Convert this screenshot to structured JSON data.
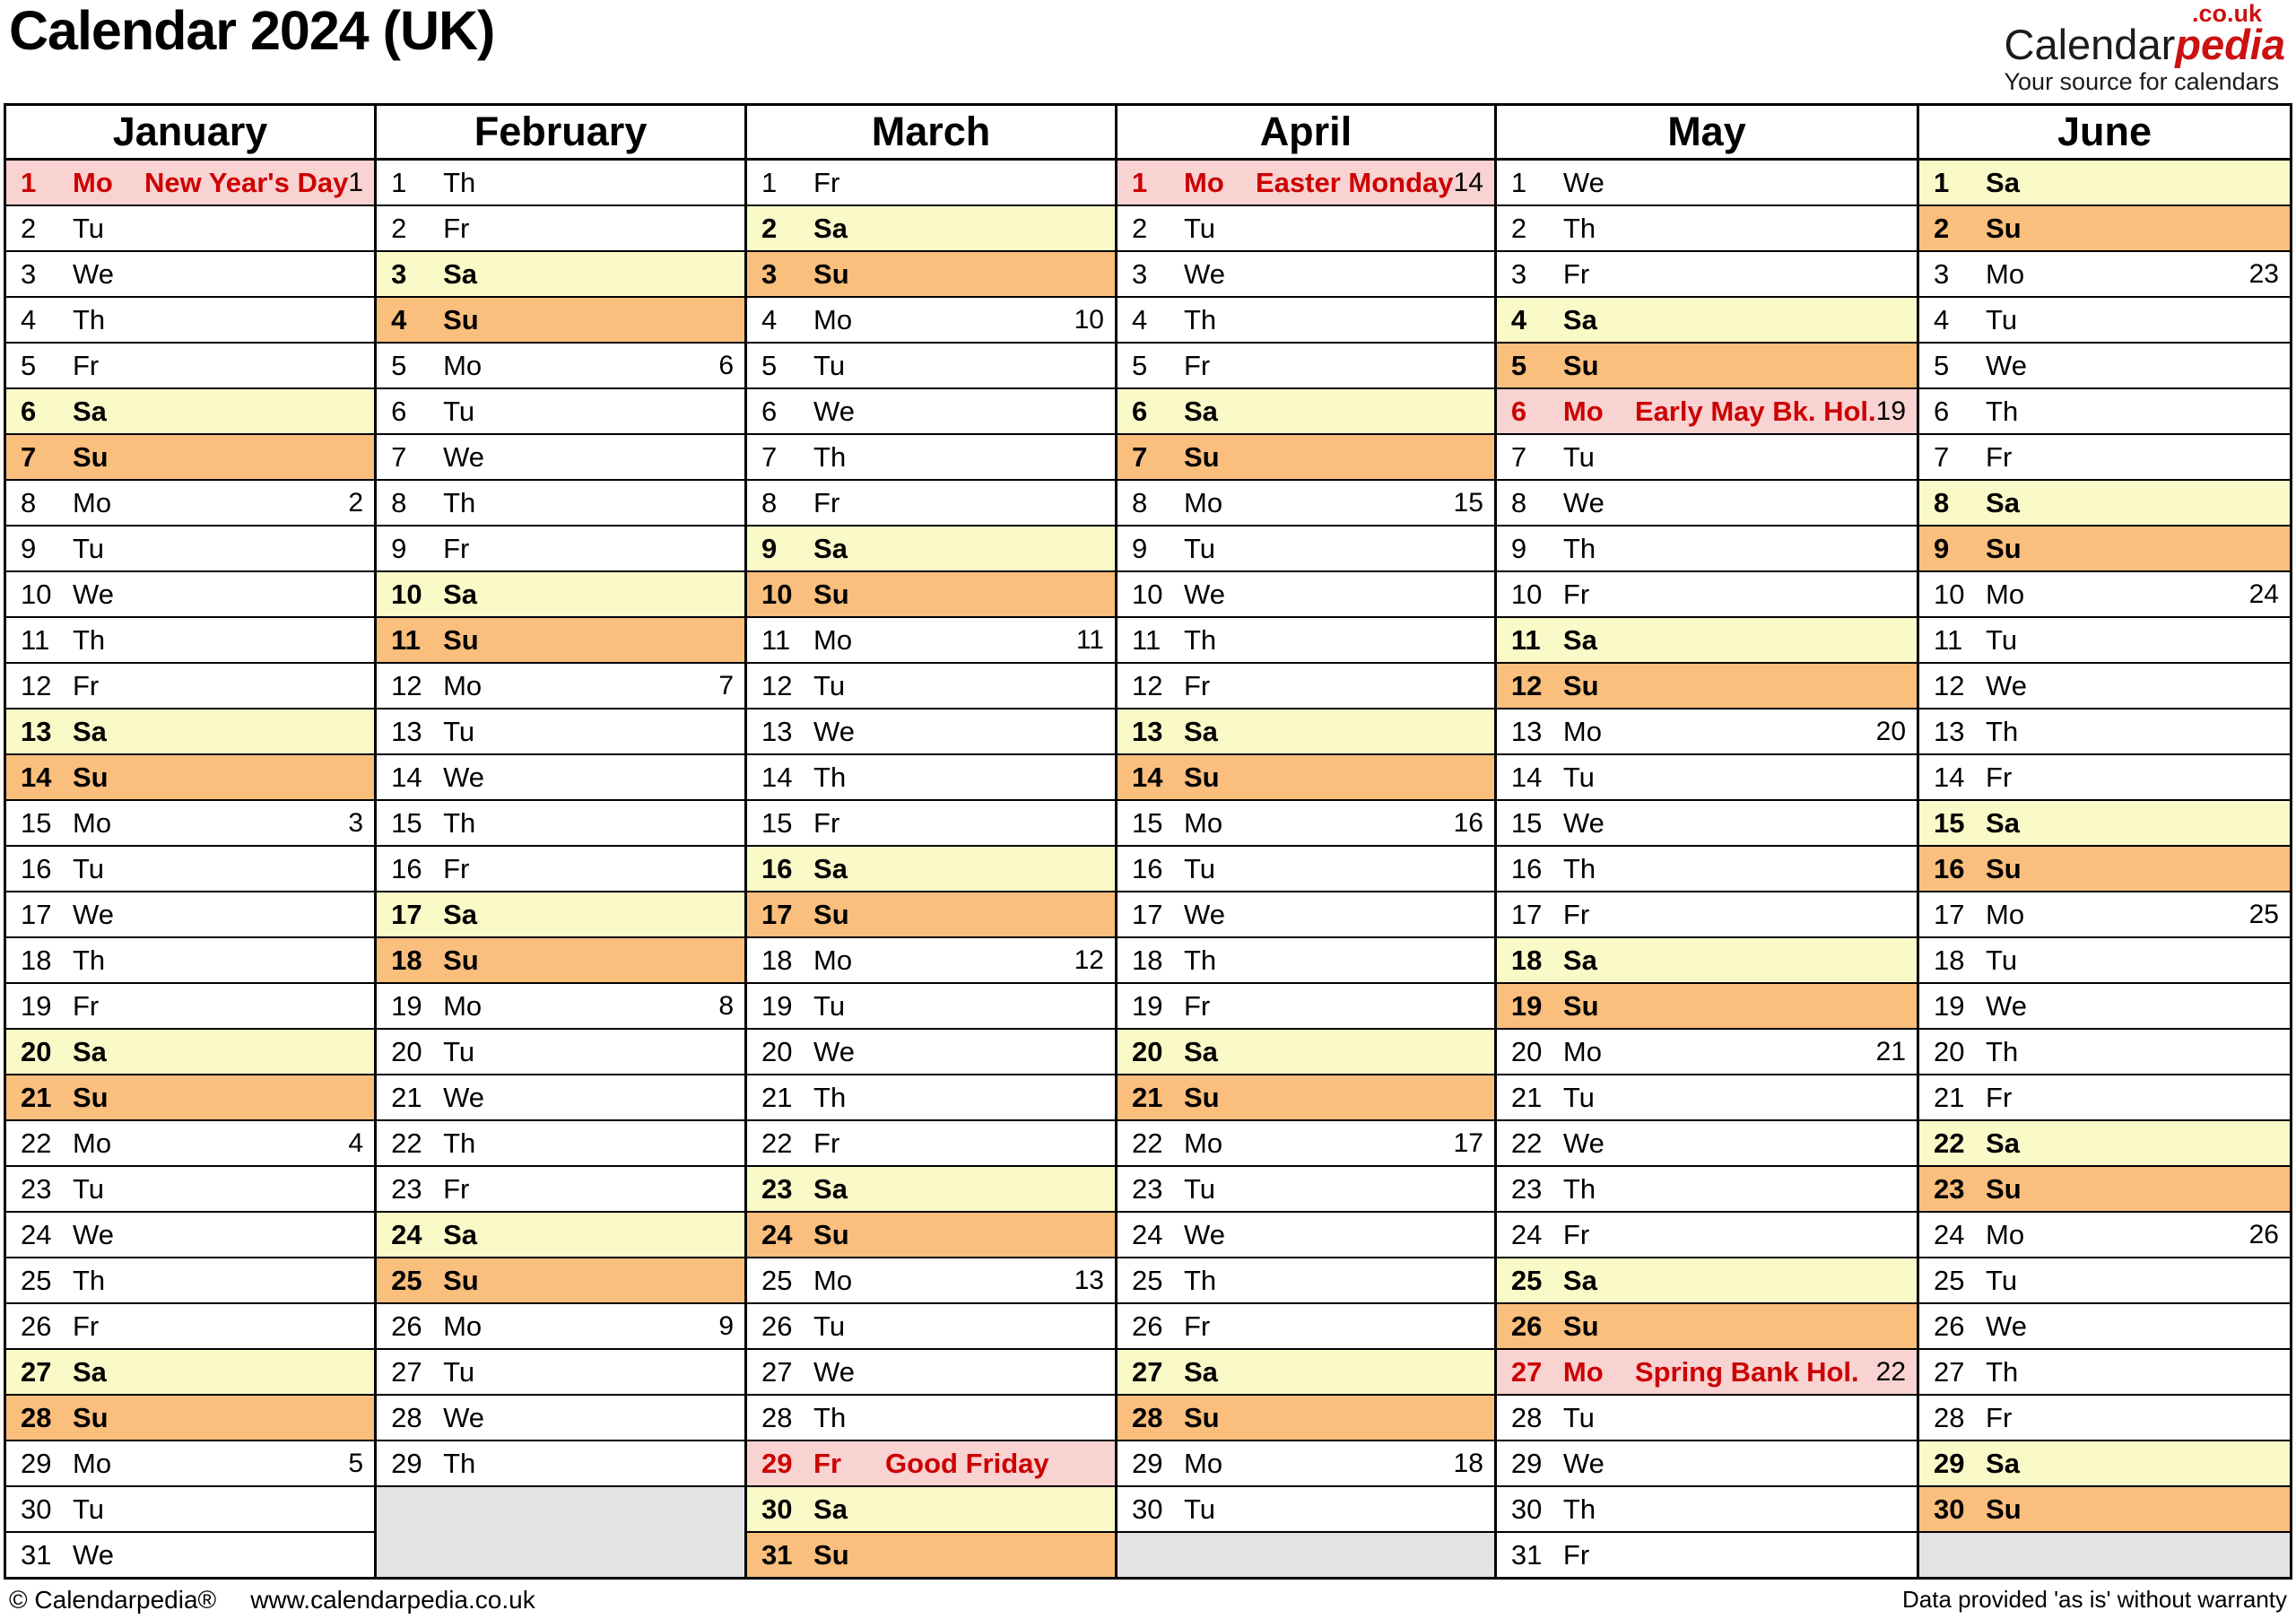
{
  "title": "Calendar 2024 (UK)",
  "logo": {
    "black": "Calendar",
    "red": "pedia",
    "couk": ".co.uk",
    "tagline": "Your source for calendars"
  },
  "footer": {
    "copyright": "© Calendarpedia®",
    "url": "www.calendarpedia.co.uk",
    "disclaimer": "Data provided 'as is' without warranty"
  },
  "colors": {
    "saturday_bg": "#FAFAC8",
    "sunday_bg": "#FABE7D",
    "holiday_bg": "#F9D2D2",
    "holiday_text": "#CC0000",
    "blank_bg": "#E3E3E3",
    "border": "#000000"
  },
  "months": [
    {
      "name": "January",
      "blanks": 0,
      "days": [
        [
          1,
          "Mo",
          "hol",
          "New Year's Day",
          1
        ],
        [
          2,
          "Tu",
          "",
          "",
          0
        ],
        [
          3,
          "We",
          "",
          "",
          0
        ],
        [
          4,
          "Th",
          "",
          "",
          0
        ],
        [
          5,
          "Fr",
          "",
          "",
          0
        ],
        [
          6,
          "Sa",
          "sa",
          "",
          0
        ],
        [
          7,
          "Su",
          "su",
          "",
          0
        ],
        [
          8,
          "Mo",
          "",
          "",
          2
        ],
        [
          9,
          "Tu",
          "",
          "",
          0
        ],
        [
          10,
          "We",
          "",
          "",
          0
        ],
        [
          11,
          "Th",
          "",
          "",
          0
        ],
        [
          12,
          "Fr",
          "",
          "",
          0
        ],
        [
          13,
          "Sa",
          "sa",
          "",
          0
        ],
        [
          14,
          "Su",
          "su",
          "",
          0
        ],
        [
          15,
          "Mo",
          "",
          "",
          3
        ],
        [
          16,
          "Tu",
          "",
          "",
          0
        ],
        [
          17,
          "We",
          "",
          "",
          0
        ],
        [
          18,
          "Th",
          "",
          "",
          0
        ],
        [
          19,
          "Fr",
          "",
          "",
          0
        ],
        [
          20,
          "Sa",
          "sa",
          "",
          0
        ],
        [
          21,
          "Su",
          "su",
          "",
          0
        ],
        [
          22,
          "Mo",
          "",
          "",
          4
        ],
        [
          23,
          "Tu",
          "",
          "",
          0
        ],
        [
          24,
          "We",
          "",
          "",
          0
        ],
        [
          25,
          "Th",
          "",
          "",
          0
        ],
        [
          26,
          "Fr",
          "",
          "",
          0
        ],
        [
          27,
          "Sa",
          "sa",
          "",
          0
        ],
        [
          28,
          "Su",
          "su",
          "",
          0
        ],
        [
          29,
          "Mo",
          "",
          "",
          5
        ],
        [
          30,
          "Tu",
          "",
          "",
          0
        ],
        [
          31,
          "We",
          "",
          "",
          0
        ]
      ]
    },
    {
      "name": "February",
      "blanks": 2,
      "days": [
        [
          1,
          "Th",
          "",
          "",
          0
        ],
        [
          2,
          "Fr",
          "",
          "",
          0
        ],
        [
          3,
          "Sa",
          "sa",
          "",
          0
        ],
        [
          4,
          "Su",
          "su",
          "",
          0
        ],
        [
          5,
          "Mo",
          "",
          "",
          6
        ],
        [
          6,
          "Tu",
          "",
          "",
          0
        ],
        [
          7,
          "We",
          "",
          "",
          0
        ],
        [
          8,
          "Th",
          "",
          "",
          0
        ],
        [
          9,
          "Fr",
          "",
          "",
          0
        ],
        [
          10,
          "Sa",
          "sa",
          "",
          0
        ],
        [
          11,
          "Su",
          "su",
          "",
          0
        ],
        [
          12,
          "Mo",
          "",
          "",
          7
        ],
        [
          13,
          "Tu",
          "",
          "",
          0
        ],
        [
          14,
          "We",
          "",
          "",
          0
        ],
        [
          15,
          "Th",
          "",
          "",
          0
        ],
        [
          16,
          "Fr",
          "",
          "",
          0
        ],
        [
          17,
          "Sa",
          "sa",
          "",
          0
        ],
        [
          18,
          "Su",
          "su",
          "",
          0
        ],
        [
          19,
          "Mo",
          "",
          "",
          8
        ],
        [
          20,
          "Tu",
          "",
          "",
          0
        ],
        [
          21,
          "We",
          "",
          "",
          0
        ],
        [
          22,
          "Th",
          "",
          "",
          0
        ],
        [
          23,
          "Fr",
          "",
          "",
          0
        ],
        [
          24,
          "Sa",
          "sa",
          "",
          0
        ],
        [
          25,
          "Su",
          "su",
          "",
          0
        ],
        [
          26,
          "Mo",
          "",
          "",
          9
        ],
        [
          27,
          "Tu",
          "",
          "",
          0
        ],
        [
          28,
          "We",
          "",
          "",
          0
        ],
        [
          29,
          "Th",
          "",
          "",
          0
        ]
      ]
    },
    {
      "name": "March",
      "blanks": 0,
      "days": [
        [
          1,
          "Fr",
          "",
          "",
          0
        ],
        [
          2,
          "Sa",
          "sa",
          "",
          0
        ],
        [
          3,
          "Su",
          "su",
          "",
          0
        ],
        [
          4,
          "Mo",
          "",
          "",
          10
        ],
        [
          5,
          "Tu",
          "",
          "",
          0
        ],
        [
          6,
          "We",
          "",
          "",
          0
        ],
        [
          7,
          "Th",
          "",
          "",
          0
        ],
        [
          8,
          "Fr",
          "",
          "",
          0
        ],
        [
          9,
          "Sa",
          "sa",
          "",
          0
        ],
        [
          10,
          "Su",
          "su",
          "",
          0
        ],
        [
          11,
          "Mo",
          "",
          "",
          11
        ],
        [
          12,
          "Tu",
          "",
          "",
          0
        ],
        [
          13,
          "We",
          "",
          "",
          0
        ],
        [
          14,
          "Th",
          "",
          "",
          0
        ],
        [
          15,
          "Fr",
          "",
          "",
          0
        ],
        [
          16,
          "Sa",
          "sa",
          "",
          0
        ],
        [
          17,
          "Su",
          "su",
          "",
          0
        ],
        [
          18,
          "Mo",
          "",
          "",
          12
        ],
        [
          19,
          "Tu",
          "",
          "",
          0
        ],
        [
          20,
          "We",
          "",
          "",
          0
        ],
        [
          21,
          "Th",
          "",
          "",
          0
        ],
        [
          22,
          "Fr",
          "",
          "",
          0
        ],
        [
          23,
          "Sa",
          "sa",
          "",
          0
        ],
        [
          24,
          "Su",
          "su",
          "",
          0
        ],
        [
          25,
          "Mo",
          "",
          "",
          13
        ],
        [
          26,
          "Tu",
          "",
          "",
          0
        ],
        [
          27,
          "We",
          "",
          "",
          0
        ],
        [
          28,
          "Th",
          "",
          "",
          0
        ],
        [
          29,
          "Fr",
          "hol",
          "Good Friday",
          0
        ],
        [
          30,
          "Sa",
          "sa",
          "",
          0
        ],
        [
          31,
          "Su",
          "su",
          "",
          0
        ]
      ]
    },
    {
      "name": "April",
      "blanks": 1,
      "days": [
        [
          1,
          "Mo",
          "hol",
          "Easter Monday",
          14
        ],
        [
          2,
          "Tu",
          "",
          "",
          0
        ],
        [
          3,
          "We",
          "",
          "",
          0
        ],
        [
          4,
          "Th",
          "",
          "",
          0
        ],
        [
          5,
          "Fr",
          "",
          "",
          0
        ],
        [
          6,
          "Sa",
          "sa",
          "",
          0
        ],
        [
          7,
          "Su",
          "su",
          "",
          0
        ],
        [
          8,
          "Mo",
          "",
          "",
          15
        ],
        [
          9,
          "Tu",
          "",
          "",
          0
        ],
        [
          10,
          "We",
          "",
          "",
          0
        ],
        [
          11,
          "Th",
          "",
          "",
          0
        ],
        [
          12,
          "Fr",
          "",
          "",
          0
        ],
        [
          13,
          "Sa",
          "sa",
          "",
          0
        ],
        [
          14,
          "Su",
          "su",
          "",
          0
        ],
        [
          15,
          "Mo",
          "",
          "",
          16
        ],
        [
          16,
          "Tu",
          "",
          "",
          0
        ],
        [
          17,
          "We",
          "",
          "",
          0
        ],
        [
          18,
          "Th",
          "",
          "",
          0
        ],
        [
          19,
          "Fr",
          "",
          "",
          0
        ],
        [
          20,
          "Sa",
          "sa",
          "",
          0
        ],
        [
          21,
          "Su",
          "su",
          "",
          0
        ],
        [
          22,
          "Mo",
          "",
          "",
          17
        ],
        [
          23,
          "Tu",
          "",
          "",
          0
        ],
        [
          24,
          "We",
          "",
          "",
          0
        ],
        [
          25,
          "Th",
          "",
          "",
          0
        ],
        [
          26,
          "Fr",
          "",
          "",
          0
        ],
        [
          27,
          "Sa",
          "sa",
          "",
          0
        ],
        [
          28,
          "Su",
          "su",
          "",
          0
        ],
        [
          29,
          "Mo",
          "",
          "",
          18
        ],
        [
          30,
          "Tu",
          "",
          "",
          0
        ]
      ]
    },
    {
      "name": "May",
      "blanks": 0,
      "days": [
        [
          1,
          "We",
          "",
          "",
          0
        ],
        [
          2,
          "Th",
          "",
          "",
          0
        ],
        [
          3,
          "Fr",
          "",
          "",
          0
        ],
        [
          4,
          "Sa",
          "sa",
          "",
          0
        ],
        [
          5,
          "Su",
          "su",
          "",
          0
        ],
        [
          6,
          "Mo",
          "hol",
          "Early May Bk. Hol.",
          19
        ],
        [
          7,
          "Tu",
          "",
          "",
          0
        ],
        [
          8,
          "We",
          "",
          "",
          0
        ],
        [
          9,
          "Th",
          "",
          "",
          0
        ],
        [
          10,
          "Fr",
          "",
          "",
          0
        ],
        [
          11,
          "Sa",
          "sa",
          "",
          0
        ],
        [
          12,
          "Su",
          "su",
          "",
          0
        ],
        [
          13,
          "Mo",
          "",
          "",
          20
        ],
        [
          14,
          "Tu",
          "",
          "",
          0
        ],
        [
          15,
          "We",
          "",
          "",
          0
        ],
        [
          16,
          "Th",
          "",
          "",
          0
        ],
        [
          17,
          "Fr",
          "",
          "",
          0
        ],
        [
          18,
          "Sa",
          "sa",
          "",
          0
        ],
        [
          19,
          "Su",
          "su",
          "",
          0
        ],
        [
          20,
          "Mo",
          "",
          "",
          21
        ],
        [
          21,
          "Tu",
          "",
          "",
          0
        ],
        [
          22,
          "We",
          "",
          "",
          0
        ],
        [
          23,
          "Th",
          "",
          "",
          0
        ],
        [
          24,
          "Fr",
          "",
          "",
          0
        ],
        [
          25,
          "Sa",
          "sa",
          "",
          0
        ],
        [
          26,
          "Su",
          "su",
          "",
          0
        ],
        [
          27,
          "Mo",
          "hol",
          "Spring Bank Hol.",
          22
        ],
        [
          28,
          "Tu",
          "",
          "",
          0
        ],
        [
          29,
          "We",
          "",
          "",
          0
        ],
        [
          30,
          "Th",
          "",
          "",
          0
        ],
        [
          31,
          "Fr",
          "",
          "",
          0
        ]
      ]
    },
    {
      "name": "June",
      "blanks": 1,
      "days": [
        [
          1,
          "Sa",
          "sa",
          "",
          0
        ],
        [
          2,
          "Su",
          "su",
          "",
          0
        ],
        [
          3,
          "Mo",
          "",
          "",
          23
        ],
        [
          4,
          "Tu",
          "",
          "",
          0
        ],
        [
          5,
          "We",
          "",
          "",
          0
        ],
        [
          6,
          "Th",
          "",
          "",
          0
        ],
        [
          7,
          "Fr",
          "",
          "",
          0
        ],
        [
          8,
          "Sa",
          "sa",
          "",
          0
        ],
        [
          9,
          "Su",
          "su",
          "",
          0
        ],
        [
          10,
          "Mo",
          "",
          "",
          24
        ],
        [
          11,
          "Tu",
          "",
          "",
          0
        ],
        [
          12,
          "We",
          "",
          "",
          0
        ],
        [
          13,
          "Th",
          "",
          "",
          0
        ],
        [
          14,
          "Fr",
          "",
          "",
          0
        ],
        [
          15,
          "Sa",
          "sa",
          "",
          0
        ],
        [
          16,
          "Su",
          "su",
          "",
          0
        ],
        [
          17,
          "Mo",
          "",
          "",
          25
        ],
        [
          18,
          "Tu",
          "",
          "",
          0
        ],
        [
          19,
          "We",
          "",
          "",
          0
        ],
        [
          20,
          "Th",
          "",
          "",
          0
        ],
        [
          21,
          "Fr",
          "",
          "",
          0
        ],
        [
          22,
          "Sa",
          "sa",
          "",
          0
        ],
        [
          23,
          "Su",
          "su",
          "",
          0
        ],
        [
          24,
          "Mo",
          "",
          "",
          26
        ],
        [
          25,
          "Tu",
          "",
          "",
          0
        ],
        [
          26,
          "We",
          "",
          "",
          0
        ],
        [
          27,
          "Th",
          "",
          "",
          0
        ],
        [
          28,
          "Fr",
          "",
          "",
          0
        ],
        [
          29,
          "Sa",
          "sa",
          "",
          0
        ],
        [
          30,
          "Su",
          "su",
          "",
          0
        ]
      ]
    }
  ]
}
